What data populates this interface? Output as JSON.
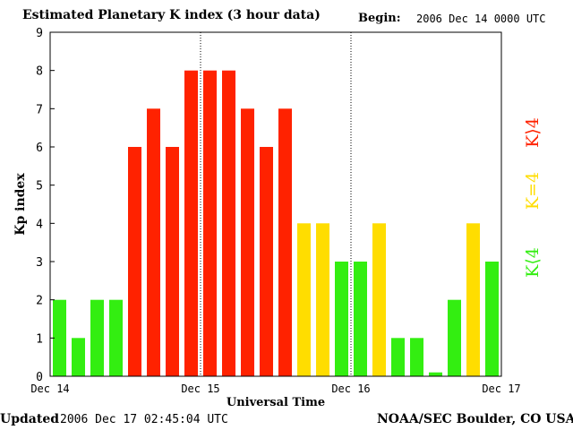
{
  "header": {
    "title": "Estimated Planetary K index (3 hour data)",
    "begin_label": "Begin:",
    "begin_value": "2006 Dec 14 0000 UTC"
  },
  "footer": {
    "updated_label": "Updated",
    "updated_value": "2006 Dec 17 02:45:04 UTC",
    "source": "NOAA/SEC Boulder, CO USA"
  },
  "legend": {
    "low": "K⟨4",
    "mid": "K=4",
    "high": "K⟩4"
  },
  "colors": {
    "low": "#33ee11",
    "mid": "#ffdd00",
    "high": "#ff2200"
  },
  "chart_data": {
    "type": "bar",
    "title": "Estimated Planetary K index (3 hour data)",
    "xlabel": "Universal Time",
    "ylabel": "Kp index",
    "ylim": [
      0,
      9
    ],
    "yticks": [
      "0",
      "1",
      "2",
      "3",
      "4",
      "5",
      "6",
      "7",
      "8",
      "9"
    ],
    "xticks": [
      "Dec 14",
      "Dec 15",
      "Dec 16",
      "Dec 17"
    ],
    "day_separators": [
      "Dec 15",
      "Dec 16"
    ],
    "values": [
      2,
      1,
      2,
      2,
      6,
      7,
      6,
      8,
      8,
      8,
      7,
      6,
      7,
      4,
      4,
      3,
      3,
      4,
      1,
      1,
      0.1,
      2,
      4,
      3
    ],
    "grid": false
  }
}
